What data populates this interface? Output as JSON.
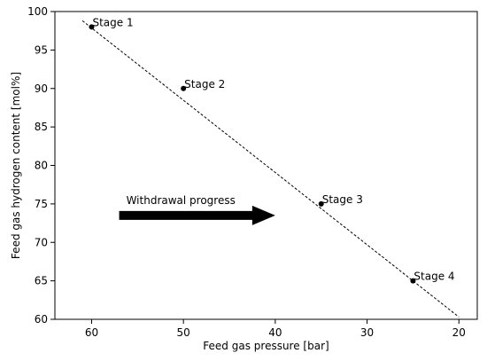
{
  "chart_data": {
    "type": "scatter",
    "title": "",
    "xlabel": "Feed gas pressure [bar]",
    "ylabel": "Feed gas hydrogen content [mol%]",
    "xlim": [
      64,
      18
    ],
    "ylim": [
      60,
      100
    ],
    "x_inverted": true,
    "xticks": [
      60,
      50,
      40,
      30,
      20
    ],
    "yticks": [
      60,
      65,
      70,
      75,
      80,
      85,
      90,
      95,
      100
    ],
    "grid": false,
    "points": [
      {
        "x": 60,
        "y": 98,
        "label": "Stage 1"
      },
      {
        "x": 50,
        "y": 90,
        "label": "Stage 2"
      },
      {
        "x": 35,
        "y": 75,
        "label": "Stage 3"
      },
      {
        "x": 25,
        "y": 65,
        "label": "Stage 4"
      }
    ],
    "trendline": {
      "style": "dashed",
      "x": [
        61,
        20
      ],
      "y": [
        98.8,
        60.3
      ]
    },
    "annotation": {
      "text": "Withdrawal progress",
      "arrow_from": {
        "x": 57,
        "y": 73.5
      },
      "arrow_to": {
        "x": 40,
        "y": 73.5
      }
    },
    "colors": {
      "marker": "#000000",
      "trendline": "#000000",
      "arrow": "#000000"
    }
  }
}
